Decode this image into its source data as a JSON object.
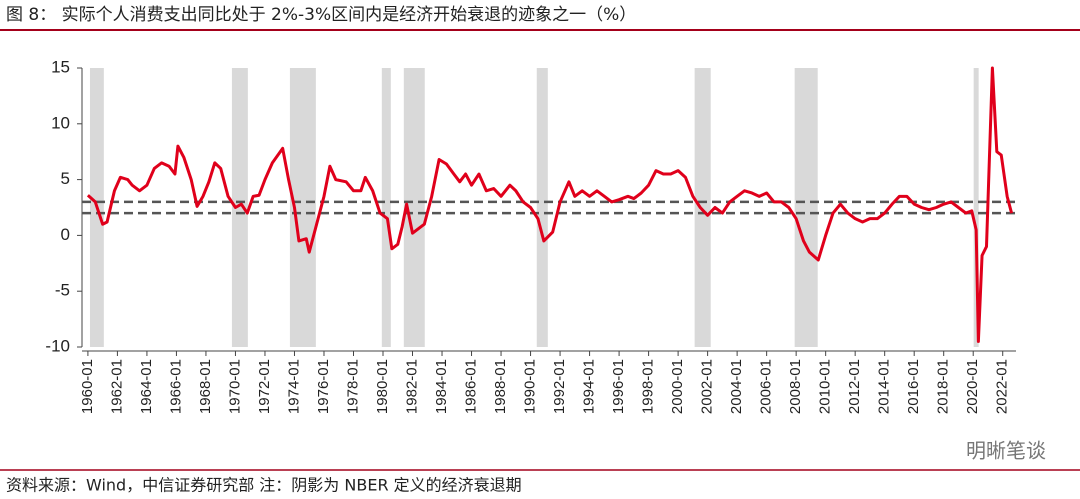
{
  "chart_data": {
    "type": "line",
    "title": "图 8：  实际个人消费支出同比处于 2%-3%区间内是经济开始衰退的迹象之一（%）",
    "source": "资料来源：Wind，中信证券研究部    注：阴影为 NBER 定义的经济衰退期",
    "watermark": "明晰笔谈",
    "color": "#e0001b",
    "shade_color": "#d9d9d9",
    "reference_lines": [
      2,
      3
    ],
    "recessions": [
      [
        1960.14,
        1961.08
      ],
      [
        1969.76,
        1970.84
      ],
      [
        1973.69,
        1975.45
      ],
      [
        1979.92,
        1980.53
      ],
      [
        1981.41,
        1982.83
      ],
      [
        1990.42,
        1991.17
      ],
      [
        2001.12,
        2002.21
      ],
      [
        2007.9,
        2009.46
      ],
      [
        2020.03,
        2020.37
      ]
    ],
    "x": [
      1960.0,
      1960.5,
      1961.0,
      1961.3,
      1961.8,
      1962.2,
      1962.7,
      1963.0,
      1963.5,
      1964.0,
      1964.5,
      1965.0,
      1965.5,
      1965.9,
      1966.1,
      1966.5,
      1967.0,
      1967.4,
      1967.8,
      1968.2,
      1968.6,
      1969.0,
      1969.5,
      1970.0,
      1970.4,
      1970.8,
      1971.2,
      1971.6,
      1972.0,
      1972.5,
      1973.2,
      1973.6,
      1974.0,
      1974.3,
      1974.8,
      1975.0,
      1975.5,
      1976.0,
      1976.4,
      1976.8,
      1977.5,
      1978.0,
      1978.5,
      1978.8,
      1979.3,
      1979.8,
      1980.3,
      1980.6,
      1981.0,
      1981.3,
      1981.6,
      1982.0,
      1982.8,
      1983.3,
      1983.8,
      1984.3,
      1984.8,
      1985.2,
      1985.6,
      1986.0,
      1986.5,
      1987.0,
      1987.5,
      1988.0,
      1988.6,
      1989.0,
      1989.5,
      1990.0,
      1990.5,
      1990.9,
      1991.5,
      1992.0,
      1992.6,
      1993.0,
      1993.5,
      1994.0,
      1994.5,
      1995.0,
      1995.5,
      1996.0,
      1996.6,
      1997.0,
      1997.5,
      1998.0,
      1998.5,
      1999.0,
      1999.5,
      2000.0,
      2000.5,
      2001.0,
      2001.5,
      2002.0,
      2002.5,
      2003.0,
      2003.5,
      2004.0,
      2004.5,
      2005.0,
      2005.5,
      2006.0,
      2006.5,
      2007.0,
      2007.5,
      2008.0,
      2008.5,
      2008.9,
      2009.5,
      2010.0,
      2010.5,
      2011.0,
      2011.5,
      2012.0,
      2012.5,
      2013.0,
      2013.5,
      2014.0,
      2014.5,
      2015.0,
      2015.5,
      2016.0,
      2016.5,
      2017.0,
      2017.5,
      2018.0,
      2018.5,
      2019.0,
      2019.5,
      2019.9,
      2020.2,
      2020.35,
      2020.6,
      2020.9,
      2021.3,
      2021.6,
      2021.9,
      2022.3,
      2022.6
    ],
    "values": [
      3.6,
      3.0,
      1.0,
      1.2,
      4.0,
      5.2,
      5.0,
      4.5,
      4.0,
      4.5,
      6.0,
      6.5,
      6.2,
      5.5,
      8.0,
      7.0,
      5.0,
      2.6,
      3.5,
      4.8,
      6.5,
      6.0,
      3.5,
      2.5,
      2.8,
      2.0,
      3.5,
      3.6,
      5.0,
      6.5,
      7.8,
      5.0,
      2.5,
      -0.5,
      -0.3,
      -1.5,
      1.0,
      3.5,
      6.2,
      5.0,
      4.8,
      4.0,
      4.0,
      5.2,
      4.0,
      2.0,
      1.5,
      -1.2,
      -0.8,
      0.8,
      2.8,
      0.2,
      1.0,
      3.5,
      6.8,
      6.4,
      5.5,
      4.8,
      5.5,
      4.5,
      5.5,
      4.0,
      4.2,
      3.5,
      4.5,
      4.0,
      3.0,
      2.5,
      1.5,
      -0.5,
      0.3,
      3.0,
      4.8,
      3.5,
      4.0,
      3.5,
      4.0,
      3.5,
      3.0,
      3.2,
      3.5,
      3.3,
      3.8,
      4.5,
      5.8,
      5.5,
      5.5,
      5.8,
      5.2,
      3.5,
      2.5,
      1.8,
      2.5,
      2.0,
      3.0,
      3.5,
      4.0,
      3.8,
      3.5,
      3.8,
      3.0,
      3.0,
      2.5,
      1.5,
      -0.5,
      -1.5,
      -2.2,
      0.0,
      2.0,
      2.8,
      2.0,
      1.5,
      1.2,
      1.5,
      1.5,
      2.0,
      2.8,
      3.5,
      3.5,
      2.8,
      2.5,
      2.3,
      2.5,
      2.8,
      3.0,
      2.5,
      2.0,
      2.2,
      0.5,
      -9.5,
      -1.8,
      -1.0,
      15.0,
      7.5,
      7.2,
      3.5,
      2.0
    ],
    "xlim": [
      1959.6,
      2022.9
    ],
    "ylim": [
      -10,
      15
    ],
    "yticks": [
      -10,
      -5,
      0,
      5,
      10,
      15
    ],
    "xticks": [
      {
        "value": 1960,
        "label": "1960-01"
      },
      {
        "value": 1962,
        "label": "1962-01"
      },
      {
        "value": 1964,
        "label": "1964-01"
      },
      {
        "value": 1966,
        "label": "1966-01"
      },
      {
        "value": 1968,
        "label": "1968-01"
      },
      {
        "value": 1970,
        "label": "1970-01"
      },
      {
        "value": 1972,
        "label": "1972-01"
      },
      {
        "value": 1974,
        "label": "1974-01"
      },
      {
        "value": 1976,
        "label": "1976-01"
      },
      {
        "value": 1978,
        "label": "1978-01"
      },
      {
        "value": 1980,
        "label": "1980-01"
      },
      {
        "value": 1982,
        "label": "1982-01"
      },
      {
        "value": 1984,
        "label": "1984-01"
      },
      {
        "value": 1986,
        "label": "1986-01"
      },
      {
        "value": 1988,
        "label": "1988-01"
      },
      {
        "value": 1990,
        "label": "1990-01"
      },
      {
        "value": 1992,
        "label": "1992-01"
      },
      {
        "value": 1994,
        "label": "1994-01"
      },
      {
        "value": 1996,
        "label": "1996-01"
      },
      {
        "value": 1998,
        "label": "1998-01"
      },
      {
        "value": 2000,
        "label": "2000-01"
      },
      {
        "value": 2002,
        "label": "2002-01"
      },
      {
        "value": 2004,
        "label": "2004-01"
      },
      {
        "value": 2006,
        "label": "2006-01"
      },
      {
        "value": 2008,
        "label": "2008-01"
      },
      {
        "value": 2010,
        "label": "2010-01"
      },
      {
        "value": 2012,
        "label": "2012-01"
      },
      {
        "value": 2014,
        "label": "2014-01"
      },
      {
        "value": 2016,
        "label": "2016-01"
      },
      {
        "value": 2018,
        "label": "2018-01"
      },
      {
        "value": 2020,
        "label": "2020-01"
      },
      {
        "value": 2022,
        "label": "2022-01"
      }
    ]
  }
}
